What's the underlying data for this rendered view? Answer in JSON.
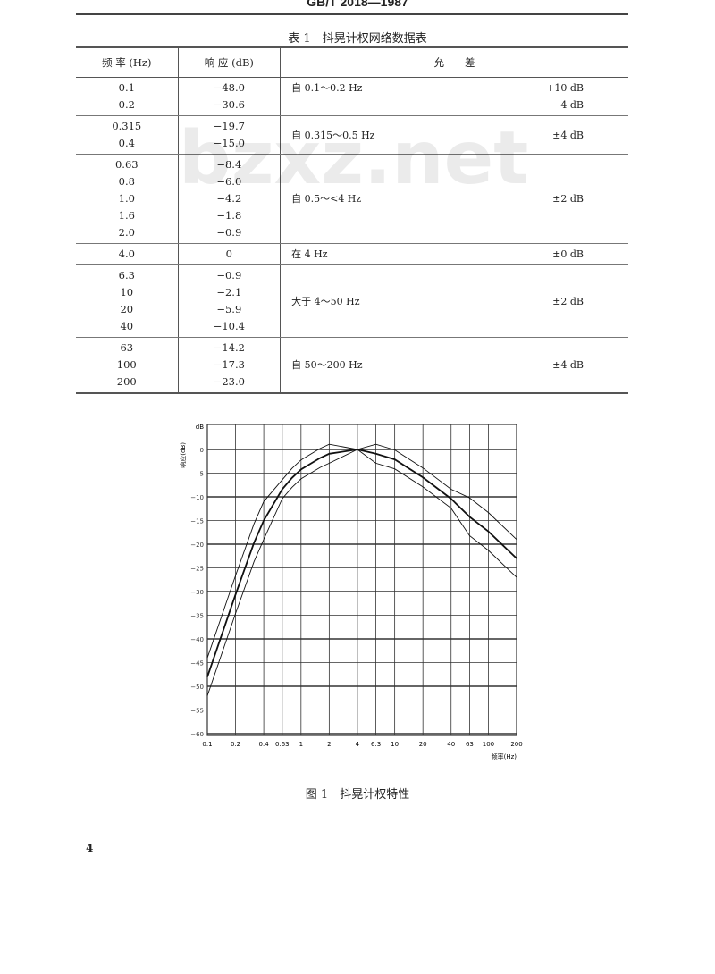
{
  "header": "GB/T 2018—1987",
  "table": {
    "caption": "表 1　抖晃计权网络数据表",
    "headers": [
      "频 率 (Hz)",
      "响 应 (dB)",
      "允　　差"
    ],
    "groups": [
      {
        "rows": [
          [
            "0.1",
            "−48.0"
          ],
          [
            "0.2",
            "−30.6"
          ]
        ],
        "tol_label": "自 0.1～0.2 Hz",
        "tol_value": [
          "+10 dB",
          "−4 dB"
        ]
      },
      {
        "rows": [
          [
            "0.315",
            "−19.7"
          ],
          [
            "0.4",
            "−15.0"
          ]
        ],
        "tol_label": "自 0.315～0.5 Hz",
        "tol_value": [
          "±4 dB"
        ]
      },
      {
        "rows": [
          [
            "0.63",
            "−8.4"
          ],
          [
            "0.8",
            "−6.0"
          ],
          [
            "1.0",
            "−4.2"
          ],
          [
            "1.6",
            "−1.8"
          ],
          [
            "2.0",
            "−0.9"
          ]
        ],
        "tol_label": "自 0.5～<4 Hz",
        "tol_value": [
          "±2 dB"
        ]
      },
      {
        "rows": [
          [
            "4.0",
            "0"
          ]
        ],
        "tol_label": "在 4 Hz",
        "tol_value": [
          "±0 dB"
        ]
      },
      {
        "rows": [
          [
            "6.3",
            "−0.9"
          ],
          [
            "10",
            "−2.1"
          ],
          [
            "20",
            "−5.9"
          ],
          [
            "40",
            "−10.4"
          ]
        ],
        "tol_label": "大于 4～50 Hz",
        "tol_value": [
          "±2 dB"
        ]
      },
      {
        "rows": [
          [
            "63",
            "−14.2"
          ],
          [
            "100",
            "−17.3"
          ],
          [
            "200",
            "−23.0"
          ]
        ],
        "tol_label": "自 50～200 Hz",
        "tol_value": [
          "±4 dB"
        ]
      }
    ]
  },
  "watermark": "bzxz.net",
  "figure": {
    "caption": "图 1　抖晃计权特性",
    "y_unit": "dB",
    "y_label": "响应(dB)",
    "x_label": "频率(Hz)",
    "y_ticks": [
      "0",
      "−5",
      "−10",
      "−15",
      "−20",
      "−25",
      "−30",
      "−35",
      "−40",
      "−45",
      "−50",
      "−55",
      "−60"
    ],
    "y_tick_values": [
      0,
      -5,
      -10,
      -15,
      -20,
      -25,
      -30,
      -35,
      -40,
      -45,
      -50,
      -55,
      -60
    ],
    "x_ticks": [
      "0.1",
      "0.2",
      "0.4",
      "0.63",
      "1",
      "2",
      "4",
      "6.3",
      "10",
      "20",
      "40",
      "63",
      "100",
      "200"
    ],
    "x_tick_values": [
      0.1,
      0.2,
      0.4,
      0.63,
      1,
      2,
      4,
      6.3,
      10,
      20,
      40,
      63,
      100,
      200
    ]
  },
  "page_number": "4"
}
